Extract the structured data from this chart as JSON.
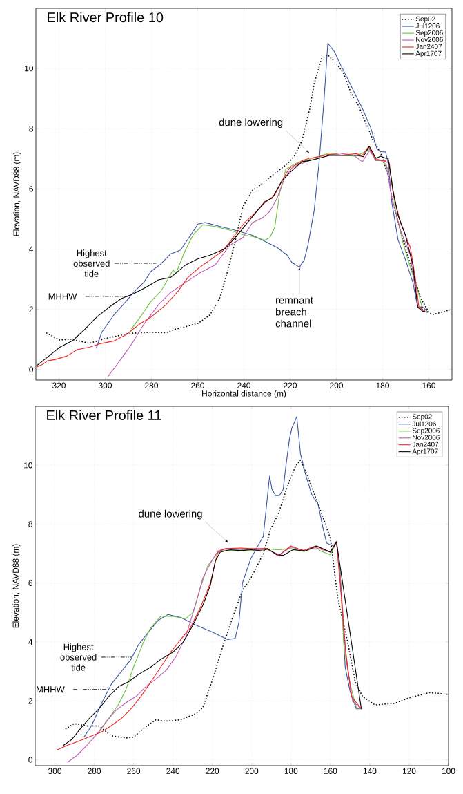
{
  "chart_data": [
    {
      "type": "line",
      "title": "Elk River Profile 10",
      "xlabel": "Horizontal distance (m)",
      "ylabel": "Elevation, NAVD88 (m)",
      "xlim": [
        330,
        150
      ],
      "ylim": [
        -0.35,
        12
      ],
      "xticks": [
        320,
        300,
        280,
        260,
        240,
        220,
        200,
        180,
        160
      ],
      "yticks": [
        0,
        2,
        4,
        6,
        8,
        10
      ],
      "grid": true,
      "legend": "top right",
      "series": [
        {
          "name": "Sep02",
          "color": "#000000",
          "line_style": "dotted",
          "x": [
            325.5,
            319.7,
            314.9,
            306.9,
            299.9,
            289.8,
            280,
            273.8,
            269.5,
            259.9,
            254.6,
            250.3,
            246.6,
            243.4,
            240.5,
            236.3,
            233.1,
            227.7,
            220.8,
            218.1,
            214.9,
            211.7,
            209.6,
            206.4,
            203.7,
            200,
            196.8,
            193.6,
            190.4,
            187.2,
            184,
            180.8,
            177.6,
            176,
            173.3,
            170.1,
            166.9,
            163.7,
            160,
            158.4,
            151
          ],
          "values": [
            1.22,
            0.98,
            1.01,
            0.87,
            1.03,
            1.2,
            1.24,
            1.22,
            1.34,
            1.53,
            1.82,
            2.4,
            3.39,
            4.38,
            5.4,
            5.95,
            6.12,
            6.45,
            6.86,
            7.1,
            7.6,
            8.6,
            9.5,
            10.33,
            10.45,
            10.17,
            9.83,
            9.17,
            8.76,
            8.18,
            7.6,
            7.19,
            6.45,
            5.7,
            4.88,
            4.05,
            3.22,
            2.4,
            1.9,
            1.82,
            1.98
          ]
        },
        {
          "name": "Jul1206",
          "color": "#3a55a5",
          "line_style": "solid",
          "x": [
            303.9,
            301.5,
            296.2,
            290.9,
            287.7,
            283.4,
            280.2,
            275.9,
            271.7,
            267.4,
            263.1,
            259.9,
            256.7,
            250.3,
            243.9,
            236.3,
            230.9,
            225.6,
            221.3,
            219.2,
            216,
            213.9,
            212.3,
            209.6,
            207.5,
            205.3,
            203.7,
            201,
            197.9,
            194.7,
            191.5,
            188.3,
            185.1,
            182.4,
            180.3,
            178.7,
            177.6,
            176,
            173.3,
            170.1,
            166.9,
            164.8,
            162.7,
            160.5
          ],
          "values": [
            0.7,
            1.24,
            1.82,
            2.27,
            2.56,
            2.89,
            3.26,
            3.51,
            3.84,
            3.97,
            4.46,
            4.83,
            4.88,
            4.75,
            4.63,
            4.46,
            4.26,
            4.05,
            3.8,
            3.55,
            3.4,
            3.64,
            4.13,
            5.29,
            6.86,
            9.0,
            10.84,
            10.58,
            10.08,
            9.59,
            9.09,
            8.6,
            8.02,
            7.31,
            7.23,
            7.23,
            6.86,
            5.54,
            4.3,
            3.64,
            2.89,
            2.07,
            2.08,
            1.92
          ]
        },
        {
          "name": "Sep2006",
          "color": "#6abf3a",
          "line_style": "solid",
          "x": [
            288.7,
            284.5,
            280.2,
            275.9,
            270.6,
            269.5,
            265.3,
            262.1,
            257.8,
            252.5,
            246.1,
            239.7,
            236.3,
            230.9,
            228.8,
            226.7,
            224.5,
            221.9,
            219.2,
            217.1,
            211.7,
            203.2,
            196.8,
            191.5,
            185.6,
            182.9,
            179.7,
            176.5,
            174.4,
            171.2,
            168,
            164.8,
            162.7
          ],
          "values": [
            1.34,
            1.78,
            2.27,
            2.6,
            3.31,
            3.18,
            3.97,
            4.46,
            4.81,
            4.75,
            4.63,
            4.46,
            4.42,
            4.3,
            4.38,
            4.71,
            5.87,
            6.65,
            6.78,
            6.86,
            6.98,
            7.19,
            7.11,
            7.09,
            7.31,
            7.02,
            6.9,
            6.53,
            5.29,
            4.21,
            3.39,
            2.64,
            1.98
          ]
        },
        {
          "name": "Nov2006",
          "color": "#c558b4",
          "line_style": "solid",
          "x": [
            299,
            294.1,
            288.7,
            283.4,
            277,
            271.7,
            265.3,
            258.9,
            252.5,
            246.1,
            240.5,
            236.3,
            232,
            228.8,
            225.6,
            222.4,
            219.2,
            217.1,
            211.7,
            203.2,
            198.9,
            192.5,
            188.8,
            185.6,
            182.9,
            178.7,
            176,
            172.3,
            168,
            164.8,
            161.6
          ],
          "values": [
            -0.25,
            0.25,
            0.83,
            1.49,
            2.15,
            2.56,
            2.89,
            3.22,
            3.47,
            4.13,
            4.38,
            4.88,
            5.04,
            5.25,
            5.7,
            6.36,
            6.69,
            6.78,
            6.94,
            7.11,
            7.19,
            7.12,
            6.9,
            7.27,
            6.94,
            6.94,
            5.7,
            4.63,
            3.8,
            2.07,
            1.94
          ]
        },
        {
          "name": "Jan2407",
          "color": "#ee2222",
          "line_style": "solid",
          "x": [
            329.8,
            327.1,
            325,
            321.8,
            316.5,
            312.2,
            306.9,
            301.5,
            296.2,
            290.9,
            285.5,
            280.2,
            273.8,
            268.5,
            264.2,
            259.9,
            254.6,
            249.3,
            243.9,
            239.7,
            236.3,
            230.9,
            226.7,
            223.5,
            220.3,
            217.1,
            214.9,
            211.7,
            207.5,
            203.2,
            197.9,
            191.5,
            188.8,
            186.1,
            182.9,
            179.7,
            177.1,
            175.5,
            172.3,
            168,
            165.9,
            164.3,
            161.6
          ],
          "values": [
            0.08,
            0.17,
            0.29,
            0.33,
            0.45,
            0.66,
            0.74,
            0.87,
            0.95,
            1.16,
            1.49,
            1.74,
            2.15,
            2.6,
            3.06,
            3.35,
            3.64,
            3.93,
            4.46,
            4.88,
            5.12,
            5.54,
            5.79,
            6.28,
            6.69,
            6.82,
            6.94,
            7.02,
            7.07,
            7.15,
            7.12,
            7.17,
            7.11,
            7.4,
            6.98,
            6.94,
            6.86,
            5.87,
            4.88,
            4.05,
            3.06,
            2.07,
            1.94
          ]
        },
        {
          "name": "Apr1707",
          "color": "#000000",
          "line_style": "solid",
          "x": [
            329.8,
            325,
            319.7,
            314.3,
            309,
            303.7,
            298.3,
            293,
            287.7,
            282.3,
            277,
            271.7,
            265.3,
            259.9,
            254.6,
            248.2,
            242.9,
            236.3,
            230.9,
            227.7,
            223.5,
            219.2,
            214.9,
            211.7,
            207.5,
            203.2,
            197.9,
            191.5,
            188.3,
            185.8,
            182.9,
            180.8,
            178.7,
            177.6,
            175.5,
            173.3,
            170.1,
            166.9,
            164.8,
            162.7,
            160.5
          ],
          "values": [
            0.12,
            0.41,
            0.74,
            0.95,
            1.32,
            1.74,
            2.07,
            2.36,
            2.52,
            2.73,
            2.98,
            3.06,
            3.47,
            3.68,
            3.8,
            4.01,
            4.46,
            5.08,
            5.58,
            5.7,
            6.28,
            6.61,
            6.9,
            6.94,
            7.02,
            7.11,
            7.11,
            7.12,
            7.07,
            7.42,
            7.02,
            7.09,
            7.02,
            7.02,
            5.95,
            5.12,
            4.46,
            3.47,
            2.07,
            1.94,
            1.9
          ]
        }
      ],
      "annotations": [
        "dune lowering",
        {
          "text": "remnant breach channel",
          "x": 216,
          "y": 3.4
        },
        "Highest observed tide",
        "MHHW"
      ]
    },
    {
      "type": "line",
      "title": "Elk River Profile 11",
      "ylabel": "Elevation, NAVD88 (m)",
      "xlim": [
        310,
        100
      ],
      "ylim": [
        -0.2,
        12
      ],
      "xticks": [
        300,
        280,
        260,
        240,
        220,
        200,
        180,
        160,
        140,
        120,
        100
      ],
      "yticks": [
        0,
        2,
        4,
        6,
        8,
        10
      ],
      "grid": true,
      "legend": "top right",
      "series": [
        {
          "name": "Sep02",
          "color": "#000000",
          "line_style": "dotted",
          "x": [
            294.6,
            290.2,
            283.9,
            277.6,
            271.3,
            263.8,
            260,
            255,
            248.7,
            243.6,
            236.1,
            228.6,
            224.8,
            219.8,
            214.8,
            209.7,
            204.7,
            200.4,
            194.1,
            190.3,
            186.5,
            181.5,
            177.7,
            175.2,
            171.4,
            167.7,
            163.9,
            160,
            156.3,
            151.2,
            147.4,
            143.7,
            137.3,
            127.2,
            119.7,
            109.6,
            100.1
          ],
          "values": [
            1.04,
            1.23,
            1.15,
            1.15,
            0.81,
            0.74,
            0.77,
            1.06,
            1.36,
            1.31,
            1.36,
            1.56,
            1.77,
            2.74,
            3.82,
            4.83,
            5.75,
            6.17,
            7.0,
            7.84,
            8.34,
            9.35,
            9.97,
            10.18,
            9.6,
            8.93,
            8.26,
            7.51,
            5.5,
            3.99,
            2.65,
            2.15,
            1.86,
            1.92,
            2.11,
            2.28,
            2.22
          ]
        },
        {
          "name": "Jul1206",
          "color": "#3a55a5",
          "line_style": "solid",
          "x": [
            285.2,
            281.4,
            276.4,
            271.3,
            266.3,
            261.3,
            257.5,
            252.5,
            247.4,
            242.4,
            236.1,
            228.6,
            219.8,
            212.2,
            208.4,
            206.5,
            204.7,
            200.4,
            194.1,
            190.9,
            189.7,
            187.8,
            185.9,
            184,
            182.7,
            180.8,
            179.6,
            177.1,
            175.2,
            172.6,
            169.5,
            166.3,
            163.8,
            161.9,
            158.8,
            156.9,
            155,
            152.5,
            150,
            146.8,
            144.3
          ],
          "values": [
            0.77,
            1.15,
            1.9,
            2.57,
            2.99,
            3.41,
            3.91,
            4.33,
            4.74,
            4.93,
            4.83,
            4.58,
            4.33,
            4.08,
            4.12,
            4.66,
            6.0,
            6.84,
            7.59,
            9.63,
            9.18,
            8.97,
            8.97,
            9.18,
            9.93,
            10.9,
            11.26,
            11.65,
            10.39,
            9.68,
            9.01,
            8.68,
            7.88,
            7.36,
            7.26,
            7.4,
            6.33,
            3.15,
            2.32,
            1.73,
            1.73
          ]
        },
        {
          "name": "Sep2006",
          "color": "#6abf3a",
          "line_style": "solid",
          "x": [
            277.6,
            272.6,
            267.5,
            263.8,
            260,
            255,
            251.2,
            246.2,
            239.9,
            233.6,
            229.8,
            226.1,
            222.3,
            218.5,
            216,
            207.2,
            200.4,
            192.8,
            186.5,
            180.2,
            173.3,
            167.6,
            165.1,
            160,
            156.9,
            155,
            153.1,
            150,
            146.8,
            144.3
          ],
          "values": [
            0.94,
            1.4,
            1.9,
            2.4,
            3.15,
            3.99,
            4.49,
            4.87,
            4.87,
            4.79,
            5.0,
            5.83,
            6.59,
            6.92,
            7.1,
            7.1,
            7.09,
            7.17,
            7.13,
            7.17,
            7.07,
            7.26,
            7.09,
            6.96,
            7.4,
            6.17,
            3.82,
            2.57,
            1.77,
            1.73
          ]
        },
        {
          "name": "Nov2006",
          "color": "#c558b4",
          "line_style": "solid",
          "x": [
            293.7,
            288.9,
            283.9,
            278.9,
            273.8,
            268.8,
            263.8,
            258.7,
            253.7,
            248.7,
            243.6,
            238.6,
            233.6,
            228.6,
            224.8,
            221,
            217.2,
            214.7,
            200.4,
            191.9,
            185.9,
            180.2,
            172.7,
            167.6,
            160,
            156.9,
            154.4,
            151.9,
            148.7,
            144.3
          ],
          "values": [
            -0.09,
            0.14,
            0.48,
            0.85,
            1.31,
            1.69,
            1.94,
            2.15,
            2.49,
            2.74,
            3.03,
            3.49,
            4.16,
            5.25,
            6.17,
            6.67,
            7.09,
            7.15,
            7.13,
            7.13,
            6.96,
            7.22,
            7.1,
            7.2,
            7.05,
            7.4,
            5.66,
            3.41,
            1.98,
            1.73
          ]
        },
        {
          "name": "Jan2407",
          "color": "#ee2222",
          "line_style": "solid",
          "x": [
            299.2,
            294,
            287.7,
            281.4,
            276.4,
            271.3,
            266.3,
            261.3,
            256.3,
            251.2,
            246.2,
            241.1,
            236.1,
            231.1,
            226.1,
            221,
            217.2,
            213.5,
            205.4,
            200.4,
            191.9,
            186.5,
            180.2,
            173.9,
            167.6,
            160,
            156.9,
            154.4,
            152.5,
            149.3,
            144.3
          ],
          "values": [
            0.33,
            0.48,
            0.64,
            0.81,
            0.94,
            1.16,
            1.4,
            1.73,
            2.15,
            2.65,
            3.15,
            3.66,
            4.08,
            4.49,
            5.16,
            6.0,
            7.05,
            7.17,
            7.19,
            7.17,
            7.17,
            6.92,
            7.26,
            7.1,
            7.26,
            7.05,
            7.4,
            5.5,
            3.82,
            2.15,
            1.73
          ]
        },
        {
          "name": "Apr1707",
          "color": "#000000",
          "line_style": "solid",
          "x": [
            295.8,
            291.4,
            287,
            282.6,
            277.6,
            272.6,
            267.5,
            262.5,
            257.5,
            251.2,
            246.2,
            239.9,
            234.8,
            229.8,
            224.8,
            221,
            218.5,
            216,
            210.9,
            205.4,
            200.4,
            194.1,
            192.1,
            187.1,
            184,
            179,
            172.7,
            167,
            160,
            156.9,
            144.3
          ],
          "values": [
            0.48,
            0.69,
            1.06,
            1.4,
            1.73,
            2.15,
            2.49,
            2.65,
            2.9,
            3.15,
            3.41,
            3.66,
            3.99,
            4.58,
            5.25,
            5.92,
            6.75,
            7.05,
            7.13,
            7.1,
            7.13,
            7.09,
            7.17,
            6.96,
            6.94,
            7.13,
            7.09,
            7.26,
            7.05,
            7.4,
            1.73
          ]
        }
      ],
      "annotations": [
        "dune lowering",
        "Highest observed tide",
        "MHHW"
      ]
    }
  ]
}
